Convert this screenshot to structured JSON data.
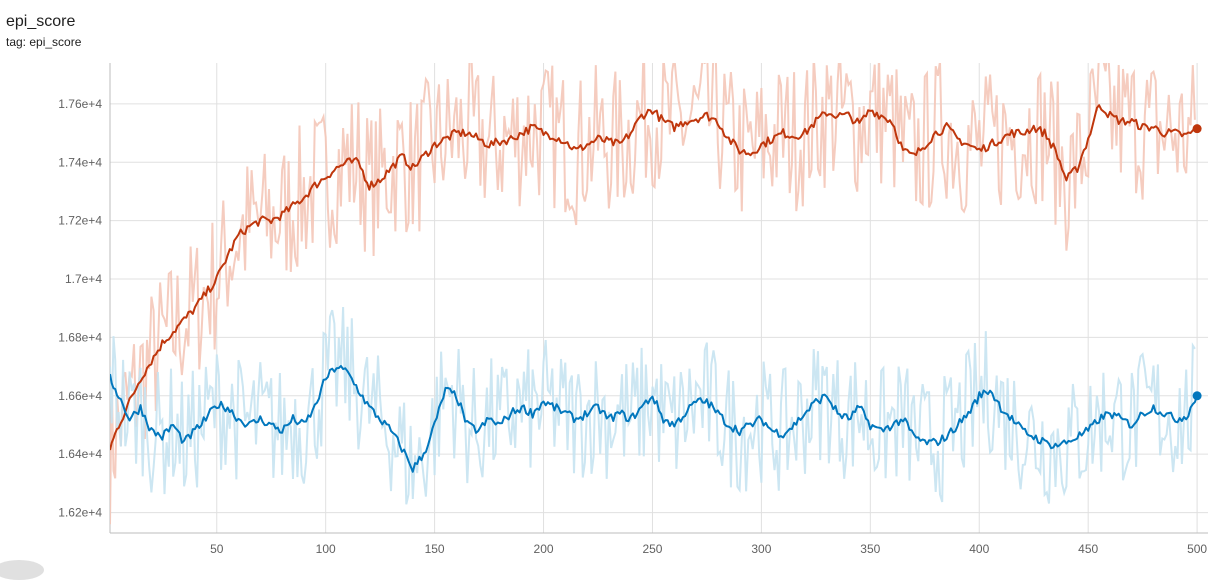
{
  "chart_data": {
    "type": "line",
    "title": "epi_score",
    "subtitle": "tag: epi_score",
    "xlabel": "",
    "ylabel": "",
    "xlim": [
      1,
      505
    ],
    "ylim": [
      16130,
      17740
    ],
    "x_ticks": [
      50,
      100,
      150,
      200,
      250,
      300,
      350,
      400,
      450,
      500
    ],
    "y_ticks": [
      {
        "value": 16200,
        "label": "1.62e+4"
      },
      {
        "value": 16400,
        "label": "1.64e+4"
      },
      {
        "value": 16600,
        "label": "1.66e+4"
      },
      {
        "value": 16800,
        "label": "1.68e+4"
      },
      {
        "value": 17000,
        "label": "1.7e+4"
      },
      {
        "value": 17200,
        "label": "1.72e+4"
      },
      {
        "value": 17400,
        "label": "1.74e+4"
      },
      {
        "value": 17600,
        "label": "1.76e+4"
      }
    ],
    "grid": true,
    "series": [
      {
        "color": "#bf360c",
        "raw_color": "#f4c7b8",
        "x": [
          1,
          5,
          10,
          15,
          20,
          25,
          30,
          35,
          40,
          45,
          50,
          55,
          60,
          65,
          70,
          75,
          80,
          85,
          90,
          95,
          100,
          105,
          110,
          115,
          120,
          125,
          130,
          135,
          140,
          145,
          150,
          155,
          160,
          165,
          170,
          175,
          180,
          185,
          190,
          195,
          200,
          205,
          210,
          215,
          220,
          225,
          230,
          235,
          240,
          245,
          250,
          255,
          260,
          265,
          270,
          275,
          280,
          285,
          290,
          295,
          300,
          305,
          310,
          315,
          320,
          325,
          330,
          335,
          340,
          345,
          350,
          355,
          360,
          365,
          370,
          375,
          380,
          385,
          390,
          395,
          400,
          405,
          410,
          415,
          420,
          425,
          430,
          435,
          440,
          445,
          450,
          455,
          460,
          465,
          470,
          475,
          480,
          485,
          490,
          495,
          500
        ],
        "y": [
          16420,
          16500,
          16580,
          16660,
          16720,
          16780,
          16820,
          16860,
          16900,
          16950,
          17000,
          17080,
          17150,
          17180,
          17200,
          17200,
          17220,
          17250,
          17280,
          17320,
          17350,
          17380,
          17400,
          17400,
          17320,
          17340,
          17380,
          17420,
          17380,
          17420,
          17460,
          17480,
          17500,
          17500,
          17480,
          17460,
          17470,
          17480,
          17500,
          17520,
          17500,
          17490,
          17470,
          17440,
          17460,
          17480,
          17470,
          17460,
          17500,
          17560,
          17580,
          17540,
          17520,
          17540,
          17550,
          17560,
          17540,
          17480,
          17440,
          17430,
          17460,
          17480,
          17500,
          17490,
          17500,
          17540,
          17570,
          17560,
          17560,
          17530,
          17580,
          17560,
          17540,
          17440,
          17420,
          17460,
          17500,
          17520,
          17480,
          17460,
          17440,
          17460,
          17480,
          17500,
          17500,
          17520,
          17500,
          17440,
          17340,
          17380,
          17480,
          17600,
          17560,
          17540,
          17540,
          17520,
          17520,
          17500,
          17500,
          17490,
          17515
        ]
      },
      {
        "color": "#0277bd",
        "raw_color": "#c6e3f1",
        "x": [
          1,
          5,
          10,
          15,
          20,
          25,
          30,
          35,
          40,
          45,
          50,
          55,
          60,
          65,
          70,
          75,
          80,
          85,
          90,
          95,
          100,
          105,
          110,
          115,
          120,
          125,
          130,
          135,
          140,
          145,
          150,
          155,
          160,
          165,
          170,
          175,
          180,
          185,
          190,
          195,
          200,
          205,
          210,
          215,
          220,
          225,
          230,
          235,
          240,
          245,
          250,
          255,
          260,
          265,
          270,
          275,
          280,
          285,
          290,
          295,
          300,
          305,
          310,
          315,
          320,
          325,
          330,
          335,
          340,
          345,
          350,
          355,
          360,
          365,
          370,
          375,
          380,
          385,
          390,
          395,
          400,
          405,
          410,
          415,
          420,
          425,
          430,
          435,
          440,
          445,
          450,
          455,
          460,
          465,
          470,
          475,
          480,
          485,
          490,
          495,
          500
        ],
        "y": [
          16660,
          16600,
          16520,
          16560,
          16480,
          16460,
          16500,
          16440,
          16480,
          16520,
          16570,
          16560,
          16520,
          16500,
          16520,
          16500,
          16480,
          16520,
          16500,
          16560,
          16660,
          16700,
          16680,
          16620,
          16560,
          16520,
          16480,
          16420,
          16350,
          16400,
          16500,
          16620,
          16600,
          16500,
          16480,
          16520,
          16500,
          16540,
          16560,
          16540,
          16580,
          16560,
          16540,
          16520,
          16540,
          16560,
          16520,
          16540,
          16520,
          16560,
          16600,
          16520,
          16500,
          16540,
          16580,
          16580,
          16540,
          16500,
          16480,
          16500,
          16520,
          16480,
          16470,
          16500,
          16540,
          16580,
          16600,
          16540,
          16520,
          16560,
          16500,
          16480,
          16500,
          16520,
          16460,
          16440,
          16440,
          16460,
          16500,
          16540,
          16600,
          16620,
          16560,
          16520,
          16480,
          16460,
          16440,
          16430,
          16440,
          16460,
          16480,
          16520,
          16540,
          16520,
          16500,
          16540,
          16560,
          16540,
          16520,
          16530,
          16600
        ]
      }
    ]
  }
}
